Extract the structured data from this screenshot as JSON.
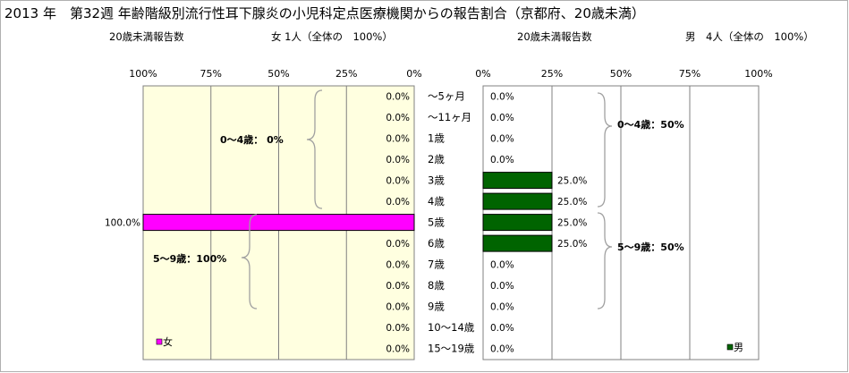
{
  "title": "2013 年　第32週 年齢階級別流行性耳下腺炎の小児科定点医療機関からの報告割合（京都府、20歳未満）",
  "left_header": {
    "label": "20歳未満報告数",
    "summary": "女 1人（全体の　100%）"
  },
  "right_header": {
    "label": "20歳未満報告数",
    "summary": "男　4人（全体の　100%）"
  },
  "colors": {
    "female": "#ff00ff",
    "male": "#006400",
    "plot_bg": "#ffffe0",
    "grid": "#808080"
  },
  "chart_data": [
    {
      "type": "bar",
      "orientation": "horizontal",
      "direction": "right-to-left",
      "categories": [
        "～5ヶ月",
        "～11ヶ月",
        "1歳",
        "2歳",
        "3歳",
        "4歳",
        "5歳",
        "6歳",
        "7歳",
        "8歳",
        "9歳",
        "10～14歳",
        "15～19歳"
      ],
      "series": [
        {
          "name": "女",
          "values": [
            0,
            0,
            0,
            0,
            0,
            0,
            100,
            0,
            0,
            0,
            0,
            0,
            0
          ],
          "labels": [
            "0.0%",
            "0.0%",
            "0.0%",
            "0.0%",
            "0.0%",
            "0.0%",
            "100.0%",
            "0.0%",
            "0.0%",
            "0.0%",
            "0.0%",
            "0.0%",
            "0.0%"
          ]
        }
      ],
      "xticks": [
        "100%",
        "75%",
        "50%",
        "25%",
        "0%"
      ],
      "xlim": [
        0,
        100
      ],
      "grid": true,
      "legend": "bottom-left",
      "annotations": [
        "0～4歳：  0%",
        "5～9歳：100%"
      ]
    },
    {
      "type": "bar",
      "orientation": "horizontal",
      "direction": "left-to-right",
      "categories": [
        "～5ヶ月",
        "～11ヶ月",
        "1歳",
        "2歳",
        "3歳",
        "4歳",
        "5歳",
        "6歳",
        "7歳",
        "8歳",
        "9歳",
        "10～14歳",
        "15～19歳"
      ],
      "series": [
        {
          "name": "男",
          "values": [
            0,
            0,
            0,
            0,
            25,
            25,
            25,
            25,
            0,
            0,
            0,
            0,
            0
          ],
          "labels": [
            "0.0%",
            "0.0%",
            "0.0%",
            "0.0%",
            "25.0%",
            "25.0%",
            "25.0%",
            "25.0%",
            "0.0%",
            "0.0%",
            "0.0%",
            "0.0%",
            "0.0%"
          ]
        }
      ],
      "xticks": [
        "0%",
        "25%",
        "50%",
        "75%",
        "100%"
      ],
      "xlim": [
        0,
        100
      ],
      "grid": true,
      "legend": "bottom-right",
      "annotations": [
        "0～4歳：50%",
        "5～9歳：50%"
      ]
    }
  ]
}
